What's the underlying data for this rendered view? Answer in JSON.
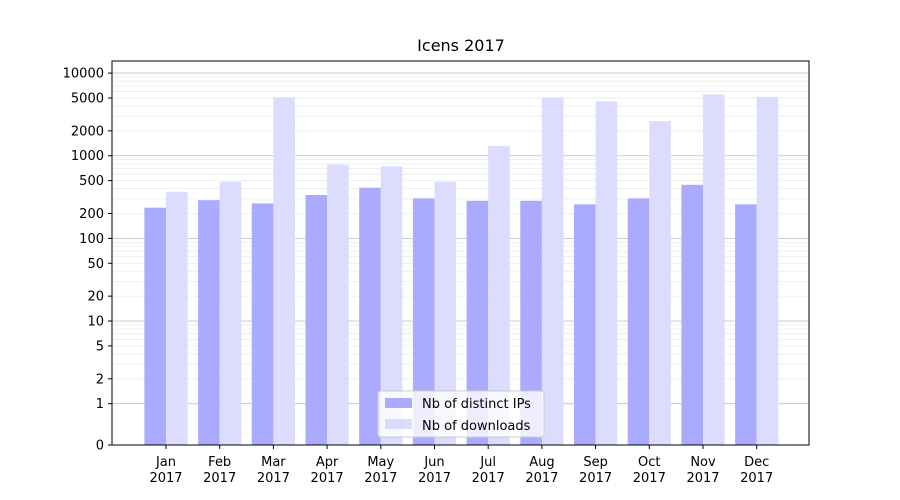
{
  "chart_data": {
    "type": "bar",
    "title": "Icens 2017",
    "xlabel": "",
    "ylabel": "",
    "categories": [
      [
        "Jan",
        "2017"
      ],
      [
        "Feb",
        "2017"
      ],
      [
        "Mar",
        "2017"
      ],
      [
        "Apr",
        "2017"
      ],
      [
        "May",
        "2017"
      ],
      [
        "Jun",
        "2017"
      ],
      [
        "Jul",
        "2017"
      ],
      [
        "Aug",
        "2017"
      ],
      [
        "Sep",
        "2017"
      ],
      [
        "Oct",
        "2017"
      ],
      [
        "Nov",
        "2017"
      ],
      [
        "Dec",
        "2017"
      ]
    ],
    "series": [
      {
        "name": "Nb of distinct IPs",
        "color": "#aaaaff",
        "values": [
          235,
          290,
          265,
          335,
          410,
          305,
          285,
          285,
          258,
          305,
          445,
          258
        ]
      },
      {
        "name": "Nb of downloads",
        "color": "#dcdcff",
        "values": [
          365,
          485,
          5100,
          780,
          745,
          485,
          1310,
          5050,
          4550,
          2620,
          5500,
          5150
        ]
      }
    ],
    "y_scale": "symlog",
    "ylim": [
      0,
      14000
    ],
    "y_ticks": [
      0,
      1,
      2,
      5,
      10,
      20,
      50,
      100,
      200,
      500,
      1000,
      2000,
      5000,
      10000
    ],
    "y_major_grid": [
      1,
      10,
      100,
      1000,
      10000
    ],
    "grid": true,
    "legend_position": "bottom-center"
  }
}
